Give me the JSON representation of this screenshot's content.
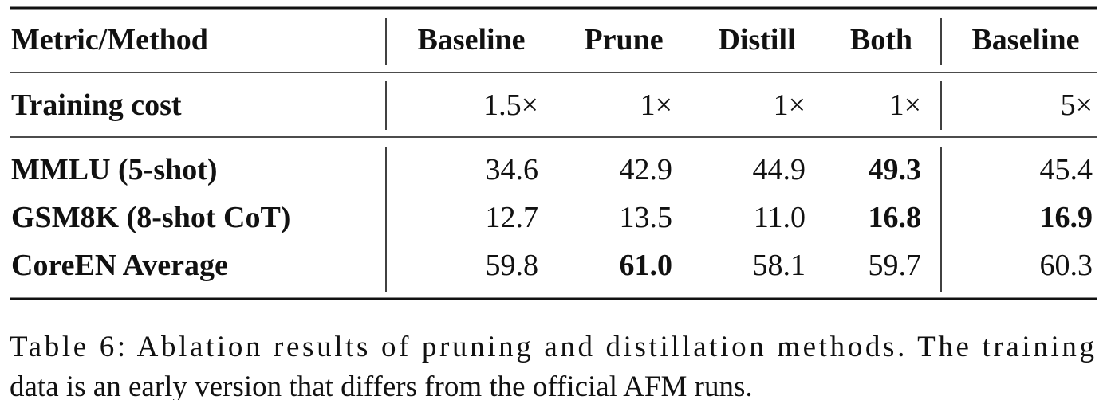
{
  "table": {
    "header": [
      "Metric/Method",
      "Baseline",
      "Prune",
      "Distill",
      "Both",
      "Baseline"
    ],
    "rows": [
      {
        "label": "Training cost",
        "cells": [
          "1.5×",
          "1×",
          "1×",
          "1×",
          "5×"
        ],
        "bold": [
          false,
          false,
          false,
          false,
          false
        ]
      },
      {
        "label": "MMLU (5-shot)",
        "cells": [
          "34.6",
          "42.9",
          "44.9",
          "49.3",
          "45.4"
        ],
        "bold": [
          false,
          false,
          false,
          true,
          false
        ]
      },
      {
        "label": "GSM8K (8-shot CoT)",
        "cells": [
          "12.7",
          "13.5",
          "11.0",
          "16.8",
          "16.9"
        ],
        "bold": [
          false,
          false,
          false,
          true,
          true
        ]
      },
      {
        "label": "CoreEN Average",
        "cells": [
          "59.8",
          "61.0",
          "58.1",
          "59.7",
          "60.3"
        ],
        "bold": [
          false,
          true,
          false,
          false,
          false
        ]
      }
    ]
  },
  "caption": {
    "lines": [
      "Table 6: Ablation results of pruning and distillation methods. The training",
      "data is an early version that differs from the official AFM runs."
    ]
  }
}
